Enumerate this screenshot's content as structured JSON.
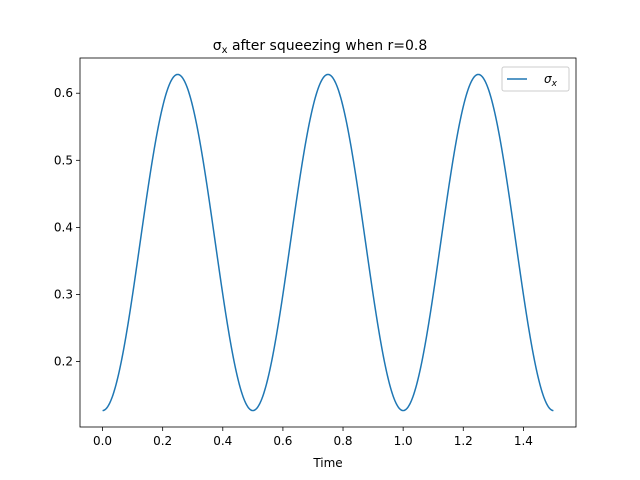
{
  "chart_data": {
    "type": "line",
    "title_prefix": "σ",
    "title_subscript": "x",
    "title_suffix": " after squeezing when r=0.8",
    "xlabel": "Time",
    "ylabel": "",
    "xlim": [
      -0.075,
      1.575
    ],
    "ylim": [
      0.1025,
      0.6525
    ],
    "xticks": [
      0.0,
      0.2,
      0.4,
      0.6,
      0.8,
      1.0,
      1.2,
      1.4
    ],
    "xtick_labels": [
      "0.0",
      "0.2",
      "0.4",
      "0.6",
      "0.8",
      "1.0",
      "1.2",
      "1.4"
    ],
    "yticks": [
      0.2,
      0.3,
      0.4,
      0.5,
      0.6
    ],
    "ytick_labels": [
      "0.2",
      "0.3",
      "0.4",
      "0.5",
      "0.6"
    ],
    "grid": false,
    "legend_position": "upper right",
    "series": [
      {
        "name_symbol": "σ",
        "name_subscript": "x",
        "color": "#1f77b4",
        "x": [
          0.0,
          0.05,
          0.1,
          0.15,
          0.2,
          0.25,
          0.3,
          0.35,
          0.4,
          0.45,
          0.5,
          0.55,
          0.6,
          0.65,
          0.7,
          0.75,
          0.8,
          0.85,
          0.9,
          0.95,
          1.0,
          1.05,
          1.1,
          1.15,
          1.2,
          1.25,
          1.3,
          1.35,
          1.4,
          1.45,
          1.5
        ],
        "values": [
          0.127,
          0.175,
          0.304,
          0.459,
          0.578,
          0.628,
          0.578,
          0.459,
          0.304,
          0.175,
          0.127,
          0.175,
          0.304,
          0.459,
          0.578,
          0.628,
          0.578,
          0.459,
          0.304,
          0.175,
          0.127,
          0.175,
          0.304,
          0.459,
          0.578,
          0.628,
          0.578,
          0.459,
          0.304,
          0.175,
          0.127
        ]
      }
    ]
  }
}
